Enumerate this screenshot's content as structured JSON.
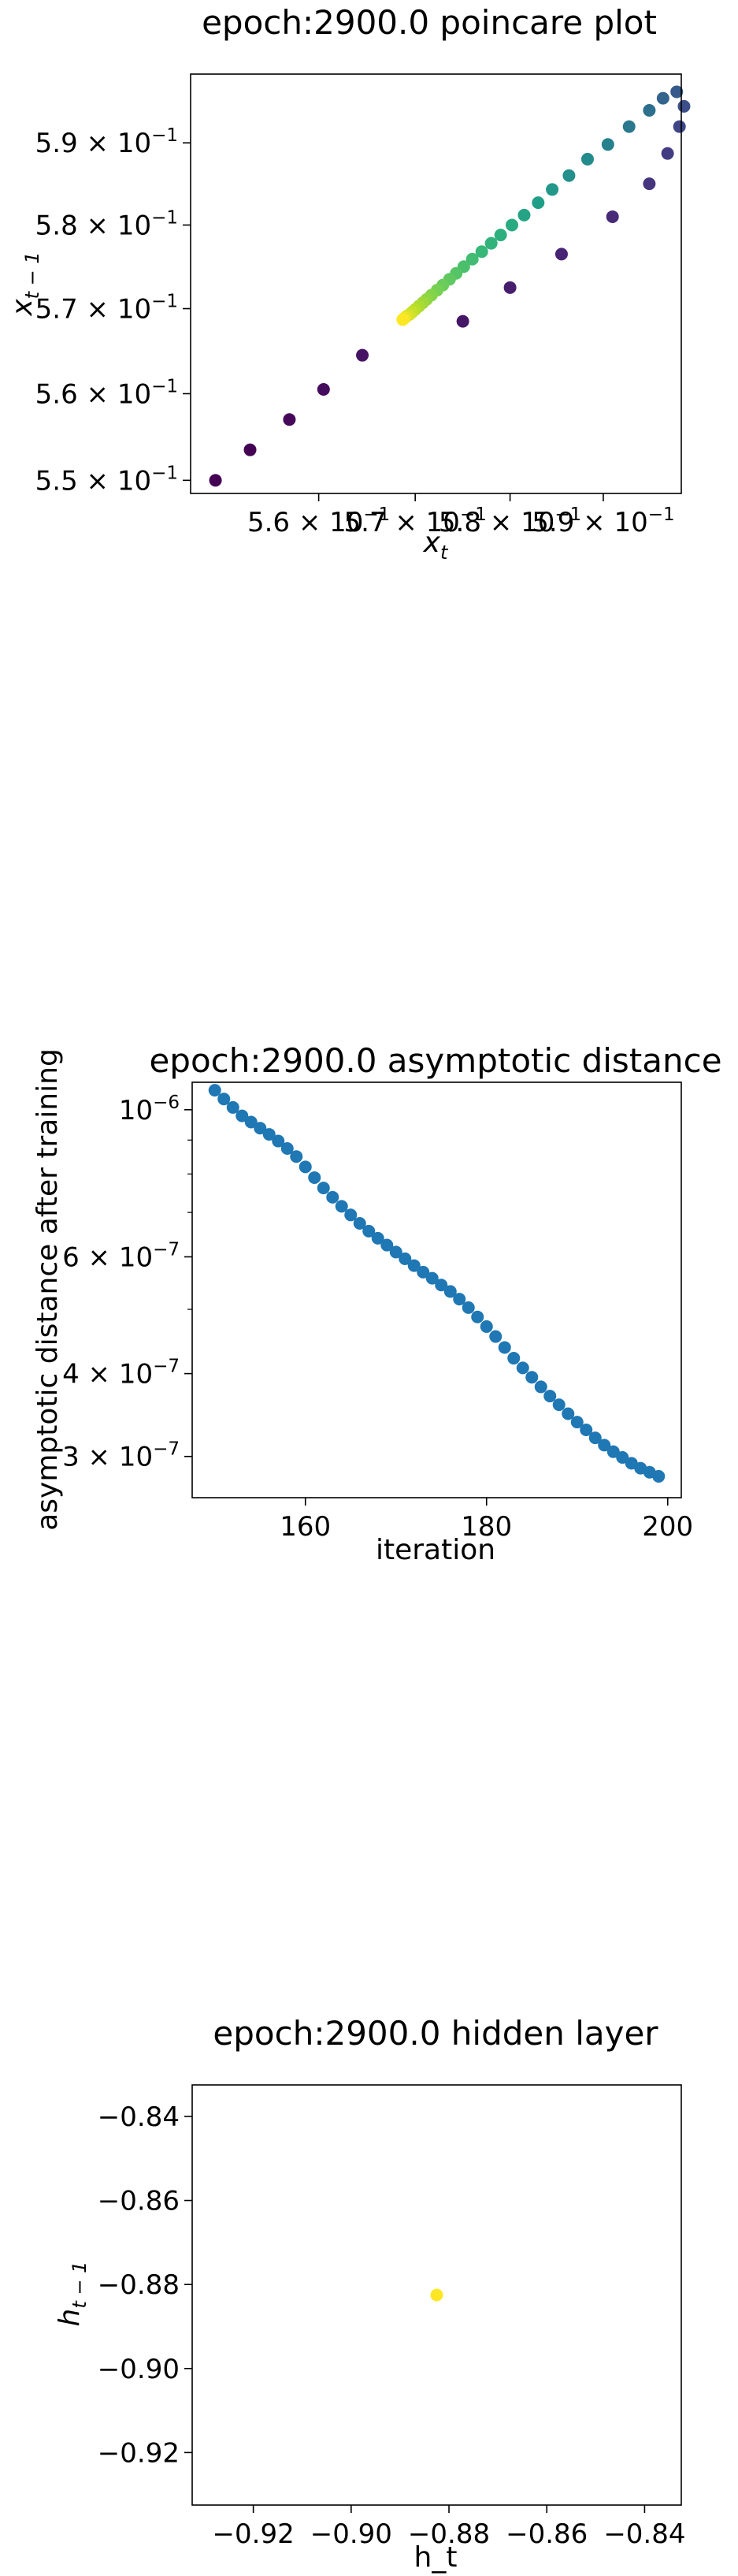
{
  "chart_data": [
    {
      "type": "scatter",
      "title": "epoch:2900.0 poincare plot",
      "xlabel": "x_t",
      "ylabel": "x_{t-1}",
      "xscale": "log",
      "yscale": "log",
      "xlim": [
        0.547,
        0.5985
      ],
      "ylim": [
        0.5485,
        0.5985
      ],
      "grid": false,
      "colormap": "viridis",
      "color_encoding": "point index: early points purple (#440154), late points yellow (#fde725)",
      "x_ticks": [
        {
          "value": 0.56,
          "base": "5.6",
          "exp": "−1"
        },
        {
          "value": 0.57,
          "base": "5.7",
          "exp": "−1"
        },
        {
          "value": 0.58,
          "base": "5.8",
          "exp": "−1"
        },
        {
          "value": 0.59,
          "base": "5.9",
          "exp": "−1"
        }
      ],
      "y_ticks": [
        {
          "value": 0.55,
          "base": "5.5",
          "exp": "−1"
        },
        {
          "value": 0.56,
          "base": "5.6",
          "exp": "−1"
        },
        {
          "value": 0.57,
          "base": "5.7",
          "exp": "−1"
        },
        {
          "value": 0.58,
          "base": "5.8",
          "exp": "−1"
        },
        {
          "value": 0.59,
          "base": "5.9",
          "exp": "−1"
        }
      ],
      "points": [
        {
          "x": 0.5495,
          "y": 0.55,
          "t": 0.0
        },
        {
          "x": 0.553,
          "y": 0.5535,
          "t": 0.0
        },
        {
          "x": 0.557,
          "y": 0.557,
          "t": 0.02
        },
        {
          "x": 0.5605,
          "y": 0.5605,
          "t": 0.03
        },
        {
          "x": 0.5645,
          "y": 0.5645,
          "t": 0.05
        },
        {
          "x": 0.575,
          "y": 0.5685,
          "t": 0.06
        },
        {
          "x": 0.58,
          "y": 0.5725,
          "t": 0.08
        },
        {
          "x": 0.5855,
          "y": 0.5765,
          "t": 0.1
        },
        {
          "x": 0.591,
          "y": 0.581,
          "t": 0.12
        },
        {
          "x": 0.595,
          "y": 0.585,
          "t": 0.15
        },
        {
          "x": 0.597,
          "y": 0.5887,
          "t": 0.18
        },
        {
          "x": 0.5983,
          "y": 0.592,
          "t": 0.21
        },
        {
          "x": 0.5988,
          "y": 0.5945,
          "t": 0.24
        },
        {
          "x": 0.598,
          "y": 0.5963,
          "t": 0.28
        },
        {
          "x": 0.5965,
          "y": 0.5955,
          "t": 0.32
        },
        {
          "x": 0.595,
          "y": 0.594,
          "t": 0.36
        },
        {
          "x": 0.5928,
          "y": 0.592,
          "t": 0.4
        },
        {
          "x": 0.5905,
          "y": 0.5898,
          "t": 0.44
        },
        {
          "x": 0.5883,
          "y": 0.588,
          "t": 0.48
        },
        {
          "x": 0.5863,
          "y": 0.586,
          "t": 0.5
        },
        {
          "x": 0.5845,
          "y": 0.5843,
          "t": 0.53
        },
        {
          "x": 0.583,
          "y": 0.5827,
          "t": 0.56
        },
        {
          "x": 0.5815,
          "y": 0.5812,
          "t": 0.58
        },
        {
          "x": 0.5802,
          "y": 0.58,
          "t": 0.61
        },
        {
          "x": 0.579,
          "y": 0.5788,
          "t": 0.63
        },
        {
          "x": 0.578,
          "y": 0.5778,
          "t": 0.65
        },
        {
          "x": 0.577,
          "y": 0.5768,
          "t": 0.67
        },
        {
          "x": 0.576,
          "y": 0.5759,
          "t": 0.69
        },
        {
          "x": 0.5751,
          "y": 0.575,
          "t": 0.71
        },
        {
          "x": 0.5743,
          "y": 0.5742,
          "t": 0.73
        },
        {
          "x": 0.5736,
          "y": 0.5735,
          "t": 0.75
        },
        {
          "x": 0.5729,
          "y": 0.5728,
          "t": 0.77
        },
        {
          "x": 0.5723,
          "y": 0.5722,
          "t": 0.79
        },
        {
          "x": 0.5717,
          "y": 0.5716,
          "t": 0.81
        },
        {
          "x": 0.5712,
          "y": 0.5711,
          "t": 0.83
        },
        {
          "x": 0.5708,
          "y": 0.5707,
          "t": 0.85
        },
        {
          "x": 0.5704,
          "y": 0.5703,
          "t": 0.87
        },
        {
          "x": 0.57,
          "y": 0.5699,
          "t": 0.89
        },
        {
          "x": 0.5697,
          "y": 0.5696,
          "t": 0.91
        },
        {
          "x": 0.5694,
          "y": 0.5693,
          "t": 0.93
        },
        {
          "x": 0.5691,
          "y": 0.5691,
          "t": 0.95
        },
        {
          "x": 0.5689,
          "y": 0.5689,
          "t": 0.97
        },
        {
          "x": 0.5687,
          "y": 0.5687,
          "t": 1.0
        }
      ]
    },
    {
      "type": "scatter",
      "title": "epoch:2900.0 asymptotic distance",
      "xlabel": "iteration",
      "ylabel": "asymptotic distance after training",
      "xscale": "linear",
      "yscale": "log",
      "xlim": [
        147.5,
        201.5
      ],
      "ylim": [
        2.6e-07,
        1.1e-06
      ],
      "grid": false,
      "color": "#1f77b4",
      "x_ticks": [
        {
          "value": 160,
          "label": "160"
        },
        {
          "value": 180,
          "label": "180"
        },
        {
          "value": 200,
          "label": "200"
        }
      ],
      "y_ticks": [
        {
          "value": 1e-06,
          "base": "10",
          "exp": "−6"
        },
        {
          "value": 6e-07,
          "base": "6 × 10",
          "exp": "−7"
        },
        {
          "value": 4e-07,
          "base": "4 × 10",
          "exp": "−7"
        },
        {
          "value": 3e-07,
          "base": "3 × 10",
          "exp": "−7"
        }
      ],
      "x": [
        150,
        151,
        152,
        153,
        154,
        155,
        156,
        157,
        158,
        159,
        160,
        161,
        162,
        163,
        164,
        165,
        166,
        167,
        168,
        169,
        170,
        171,
        172,
        173,
        174,
        175,
        176,
        177,
        178,
        179,
        180,
        181,
        182,
        183,
        184,
        185,
        186,
        187,
        188,
        189,
        190,
        191,
        192,
        193,
        194,
        195,
        196,
        197,
        198,
        199
      ],
      "y": [
        1.07e-06,
        1.038e-06,
        1.008e-06,
        9.79e-07,
        9.58e-07,
        9.38e-07,
        9.18e-07,
        8.97e-07,
        8.74e-07,
        8.5e-07,
        8.2e-07,
        7.9e-07,
        7.62e-07,
        7.38e-07,
        7.15e-07,
        6.94e-07,
        6.74e-07,
        6.56e-07,
        6.4e-07,
        6.25e-07,
        6.1e-07,
        5.96e-07,
        5.82e-07,
        5.69e-07,
        5.57e-07,
        5.44e-07,
        5.32e-07,
        5.18e-07,
        5.03e-07,
        4.87e-07,
        4.71e-07,
        4.55e-07,
        4.38e-07,
        4.22e-07,
        4.08e-07,
        3.95e-07,
        3.82e-07,
        3.7e-07,
        3.59e-07,
        3.48e-07,
        3.38e-07,
        3.29e-07,
        3.2e-07,
        3.12e-07,
        3.05e-07,
        2.99e-07,
        2.93e-07,
        2.88e-07,
        2.84e-07,
        2.8e-07
      ]
    },
    {
      "type": "scatter",
      "title": "epoch:2900.0 hidden layer",
      "xlabel": "h_t",
      "ylabel": "h_{t-1}",
      "xscale": "linear",
      "yscale": "linear",
      "xlim": [
        -0.9325,
        -0.8325
      ],
      "ylim": [
        -0.9325,
        -0.8325
      ],
      "grid": false,
      "x_ticks": [
        {
          "value": -0.92,
          "label": "−0.92"
        },
        {
          "value": -0.9,
          "label": "−0.90"
        },
        {
          "value": -0.88,
          "label": "−0.88"
        },
        {
          "value": -0.86,
          "label": "−0.86"
        },
        {
          "value": -0.84,
          "label": "−0.84"
        }
      ],
      "y_ticks": [
        {
          "value": -0.84,
          "label": "−0.84"
        },
        {
          "value": -0.86,
          "label": "−0.86"
        },
        {
          "value": -0.88,
          "label": "−0.88"
        },
        {
          "value": -0.9,
          "label": "−0.90"
        },
        {
          "value": -0.92,
          "label": "−0.92"
        }
      ],
      "points": [
        {
          "x": -0.8825,
          "y": -0.8825,
          "color": "#fde725"
        }
      ]
    }
  ]
}
